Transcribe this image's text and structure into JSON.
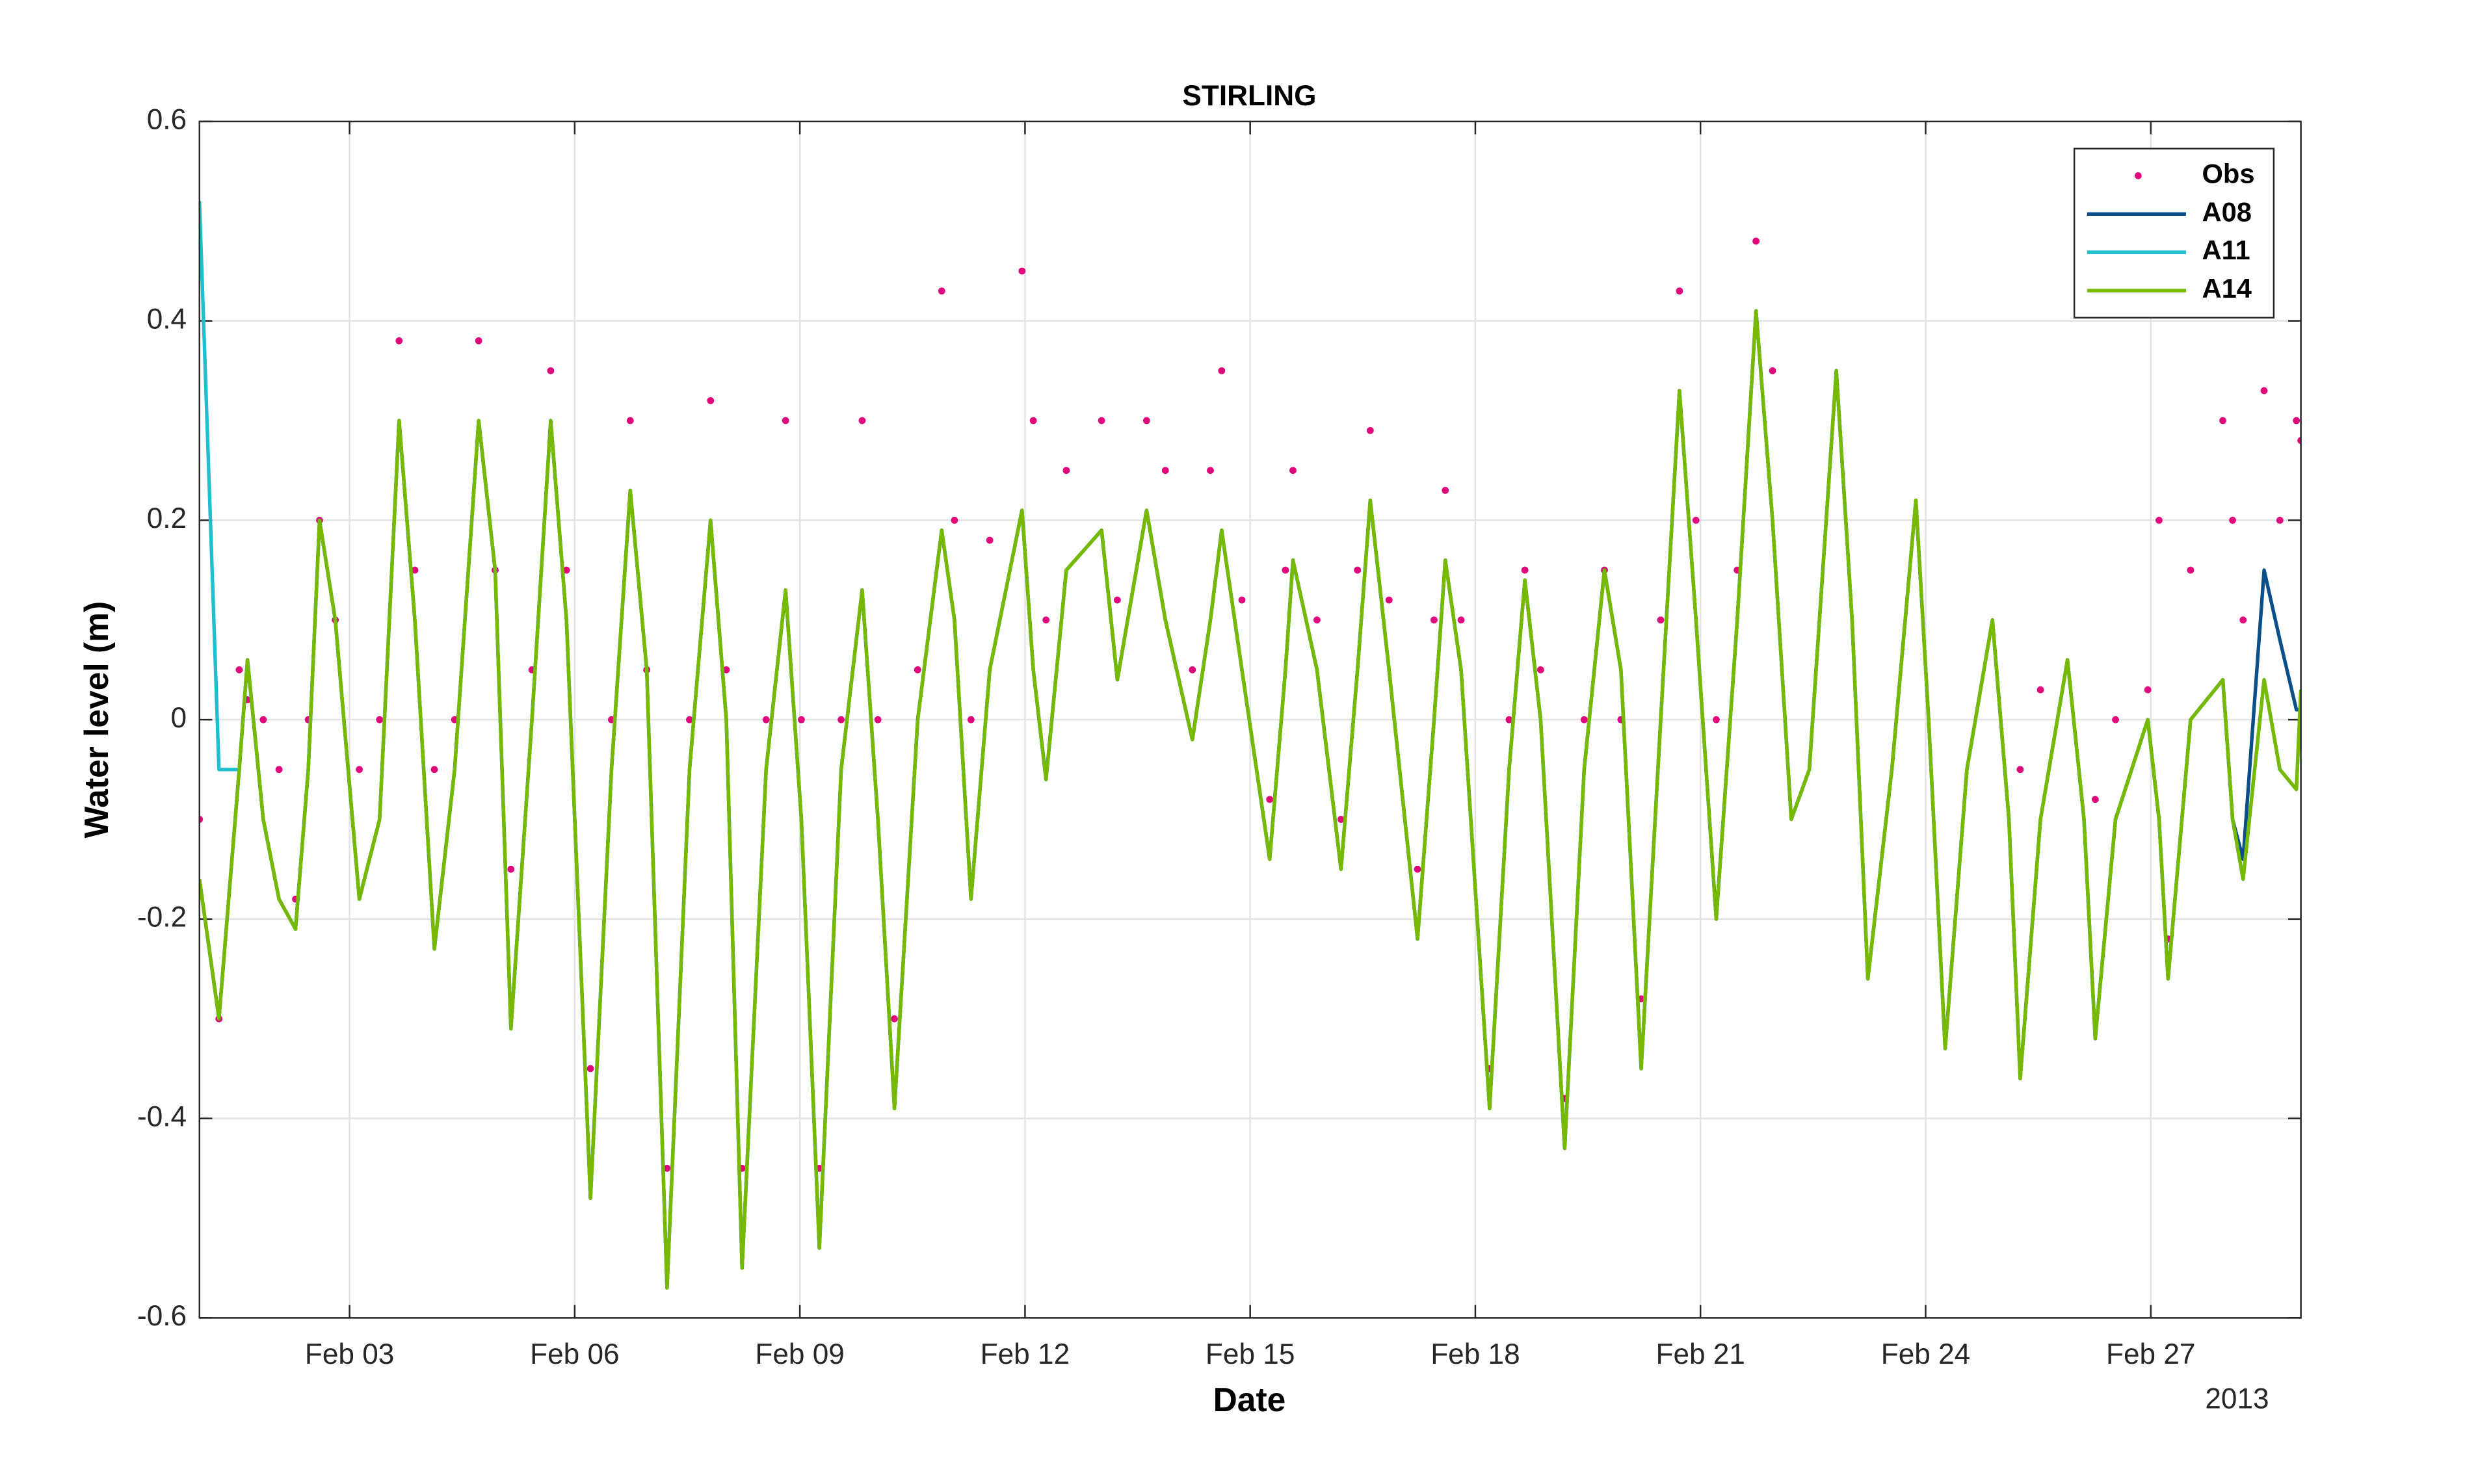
{
  "chart_data": {
    "type": "line",
    "title": "STIRLING",
    "x_label": "Date",
    "y_label": "Water level (m)",
    "year_label": "2013",
    "xlim": [
      1,
      29
    ],
    "ylim": [
      -0.6,
      0.6
    ],
    "grid": true,
    "legend_position": "upper-right",
    "xticks": [
      {
        "value": 3,
        "label": "Feb 03"
      },
      {
        "value": 6,
        "label": "Feb 06"
      },
      {
        "value": 9,
        "label": "Feb 09"
      },
      {
        "value": 12,
        "label": "Feb 12"
      },
      {
        "value": 15,
        "label": "Feb 15"
      },
      {
        "value": 18,
        "label": "Feb 18"
      },
      {
        "value": 21,
        "label": "Feb 21"
      },
      {
        "value": 24,
        "label": "Feb 24"
      },
      {
        "value": 27,
        "label": "Feb 27"
      }
    ],
    "yticks": [
      -0.6,
      -0.4,
      -0.2,
      0,
      0.2,
      0.4,
      0.6
    ],
    "x": [
      1.0,
      1.26,
      1.53,
      1.64,
      1.85,
      2.06,
      2.28,
      2.45,
      2.6,
      2.81,
      3.13,
      3.4,
      3.66,
      3.87,
      4.13,
      4.4,
      4.72,
      4.94,
      5.15,
      5.43,
      5.68,
      5.89,
      6.21,
      6.49,
      6.74,
      6.96,
      7.23,
      7.53,
      7.81,
      8.02,
      8.23,
      8.55,
      8.81,
      9.02,
      9.26,
      9.55,
      9.83,
      10.04,
      10.26,
      10.57,
      10.89,
      11.06,
      11.28,
      11.53,
      11.96,
      12.11,
      12.28,
      12.55,
      13.02,
      13.23,
      13.62,
      13.87,
      14.23,
      14.47,
      14.62,
      14.89,
      15.26,
      15.47,
      15.57,
      15.89,
      16.21,
      16.43,
      16.6,
      16.85,
      17.23,
      17.45,
      17.6,
      17.81,
      18.19,
      18.45,
      18.66,
      18.87,
      19.19,
      19.45,
      19.72,
      19.94,
      20.21,
      20.47,
      20.72,
      20.94,
      21.21,
      21.49,
      21.74,
      21.96,
      22.21,
      22.45,
      22.81,
      23.02,
      23.23,
      23.55,
      23.87,
      24.04,
      24.26,
      24.55,
      24.89,
      25.11,
      25.26,
      25.53,
      25.89,
      26.11,
      26.26,
      26.53,
      26.96,
      27.11,
      27.23,
      27.53,
      27.96,
      28.09,
      28.23,
      28.51,
      28.72,
      28.94,
      29.0
    ],
    "series": [
      {
        "name": "Obs",
        "mode": "markers",
        "color": "#e0077d",
        "values": [
          -0.1,
          -0.3,
          0.05,
          0.02,
          0.0,
          -0.05,
          -0.18,
          0.0,
          0.2,
          0.1,
          -0.05,
          0.0,
          0.38,
          0.15,
          -0.05,
          0.0,
          0.38,
          0.15,
          -0.15,
          0.05,
          0.35,
          0.15,
          -0.35,
          0.0,
          0.3,
          0.05,
          -0.45,
          0.0,
          0.32,
          0.05,
          -0.45,
          0.0,
          0.3,
          0.0,
          -0.45,
          0.0,
          0.3,
          0.0,
          -0.3,
          0.05,
          0.43,
          0.2,
          0.0,
          0.18,
          0.45,
          0.3,
          0.1,
          0.25,
          0.3,
          0.12,
          0.3,
          0.25,
          0.05,
          0.25,
          0.35,
          0.12,
          -0.08,
          0.15,
          0.25,
          0.1,
          -0.1,
          0.15,
          0.29,
          0.12,
          -0.15,
          0.1,
          0.23,
          0.1,
          -0.35,
          0.0,
          0.15,
          0.05,
          -0.38,
          0.0,
          0.15,
          0.0,
          -0.28,
          0.1,
          0.43,
          0.2,
          0.0,
          0.15,
          0.48,
          0.35,
          null,
          null,
          null,
          null,
          null,
          null,
          null,
          null,
          null,
          null,
          null,
          null,
          -0.05,
          0.03,
          null,
          null,
          -0.08,
          0.0,
          0.03,
          0.2,
          -0.22,
          0.15,
          0.3,
          0.2,
          0.1,
          0.33,
          0.2,
          0.3,
          0.28
        ]
      },
      {
        "name": "A08",
        "mode": "lines",
        "color": "#0b4f8a",
        "values": [
          -0.16,
          -0.3,
          -0.05,
          0.06,
          -0.1,
          -0.18,
          -0.21,
          -0.05,
          0.2,
          0.1,
          -0.18,
          -0.1,
          0.3,
          0.1,
          -0.23,
          -0.05,
          0.3,
          0.15,
          -0.31,
          0.0,
          0.3,
          0.1,
          -0.48,
          -0.05,
          0.23,
          0.05,
          -0.57,
          -0.05,
          0.2,
          0.0,
          -0.55,
          -0.05,
          0.13,
          -0.1,
          -0.53,
          -0.05,
          0.13,
          -0.1,
          -0.39,
          0.0,
          0.19,
          0.1,
          -0.18,
          0.05,
          0.21,
          0.05,
          -0.06,
          0.15,
          0.19,
          0.04,
          0.21,
          0.1,
          -0.02,
          0.1,
          0.19,
          0.05,
          -0.14,
          0.05,
          0.16,
          0.05,
          -0.15,
          0.05,
          0.22,
          0.05,
          -0.22,
          0.0,
          0.16,
          0.05,
          -0.39,
          -0.05,
          0.14,
          0.0,
          -0.43,
          -0.05,
          0.15,
          0.05,
          -0.35,
          0.0,
          0.33,
          0.1,
          -0.2,
          0.1,
          0.41,
          0.2,
          -0.1,
          -0.05,
          0.35,
          0.1,
          -0.26,
          -0.05,
          0.22,
          0.0,
          -0.33,
          -0.05,
          0.1,
          -0.1,
          -0.36,
          -0.1,
          0.06,
          -0.1,
          -0.32,
          -0.1,
          0.0,
          -0.1,
          -0.26,
          0.0,
          0.04,
          -0.1,
          -0.14,
          0.15,
          0.08,
          0.01,
          0.01
        ]
      },
      {
        "name": "A11",
        "mode": "lines",
        "color": "#1fbfcf",
        "values": [
          0.52,
          -0.05,
          -0.05,
          0.06,
          -0.1,
          -0.18,
          -0.21,
          -0.05,
          0.2,
          0.1,
          -0.18,
          -0.1,
          0.3,
          0.1,
          -0.23,
          -0.05,
          0.3,
          0.15,
          -0.31,
          0.0,
          0.3,
          0.1,
          -0.48,
          -0.05,
          0.23,
          0.05,
          -0.57,
          -0.05,
          0.2,
          0.0,
          -0.55,
          -0.05,
          0.13,
          -0.1,
          -0.53,
          -0.05,
          0.13,
          -0.1,
          -0.39,
          0.0,
          0.19,
          0.1,
          -0.18,
          0.05,
          0.21,
          0.05,
          -0.06,
          0.15,
          0.19,
          0.04,
          0.21,
          0.1,
          -0.02,
          0.1,
          0.19,
          0.05,
          -0.14,
          0.05,
          0.16,
          0.05,
          -0.15,
          0.05,
          0.22,
          0.05,
          -0.22,
          0.0,
          0.16,
          0.05,
          -0.39,
          -0.05,
          0.14,
          0.0,
          -0.43,
          -0.05,
          0.15,
          0.05,
          -0.35,
          0.0,
          0.33,
          0.1,
          -0.2,
          0.1,
          0.41,
          0.2,
          -0.1,
          -0.05,
          0.35,
          0.1,
          -0.26,
          -0.05,
          0.22,
          0.0,
          -0.33,
          -0.05,
          0.1,
          -0.1,
          -0.36,
          -0.1,
          0.06,
          -0.1,
          -0.32,
          -0.1,
          0.0,
          -0.1,
          -0.26,
          0.0,
          0.04,
          -0.1,
          -0.16,
          0.04,
          -0.05,
          -0.07,
          0.03
        ]
      },
      {
        "name": "A14",
        "mode": "lines",
        "color": "#77b900",
        "values": [
          -0.16,
          -0.3,
          -0.05,
          0.06,
          -0.1,
          -0.18,
          -0.21,
          -0.05,
          0.2,
          0.1,
          -0.18,
          -0.1,
          0.3,
          0.1,
          -0.23,
          -0.05,
          0.3,
          0.15,
          -0.31,
          0.0,
          0.3,
          0.1,
          -0.48,
          -0.05,
          0.23,
          0.05,
          -0.57,
          -0.05,
          0.2,
          0.0,
          -0.55,
          -0.05,
          0.13,
          -0.1,
          -0.53,
          -0.05,
          0.13,
          -0.1,
          -0.39,
          0.0,
          0.19,
          0.1,
          -0.18,
          0.05,
          0.21,
          0.05,
          -0.06,
          0.15,
          0.19,
          0.04,
          0.21,
          0.1,
          -0.02,
          0.1,
          0.19,
          0.05,
          -0.14,
          0.05,
          0.16,
          0.05,
          -0.15,
          0.05,
          0.22,
          0.05,
          -0.22,
          0.0,
          0.16,
          0.05,
          -0.39,
          -0.05,
          0.14,
          0.0,
          -0.43,
          -0.05,
          0.15,
          0.05,
          -0.35,
          0.0,
          0.33,
          0.1,
          -0.2,
          0.1,
          0.41,
          0.2,
          -0.1,
          -0.05,
          0.35,
          0.1,
          -0.26,
          -0.05,
          0.22,
          0.0,
          -0.33,
          -0.05,
          0.1,
          -0.1,
          -0.36,
          -0.1,
          0.06,
          -0.1,
          -0.32,
          -0.1,
          0.0,
          -0.1,
          -0.26,
          0.0,
          0.04,
          -0.1,
          -0.16,
          0.04,
          -0.05,
          -0.07,
          0.03
        ]
      }
    ]
  }
}
